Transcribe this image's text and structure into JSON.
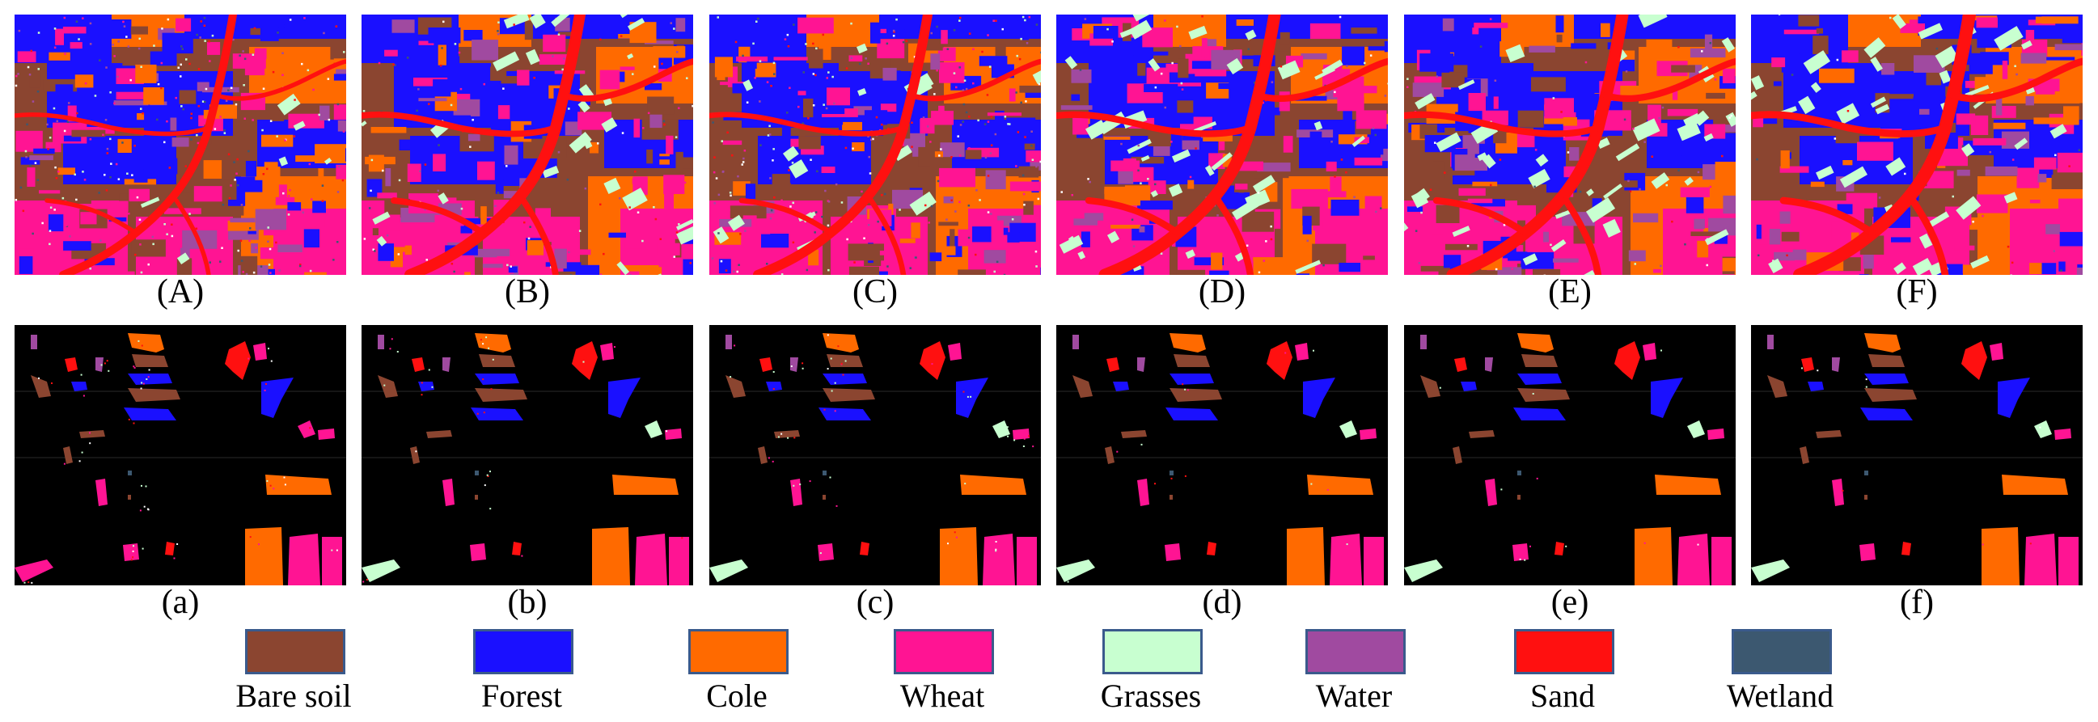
{
  "panels_top": [
    {
      "label": "(A)"
    },
    {
      "label": "(B)"
    },
    {
      "label": "(C)"
    },
    {
      "label": "(D)"
    },
    {
      "label": "(E)"
    },
    {
      "label": "(F)"
    }
  ],
  "panels_bottom": [
    {
      "label": "(a)"
    },
    {
      "label": "(b)"
    },
    {
      "label": "(c)"
    },
    {
      "label": "(d)"
    },
    {
      "label": "(e)"
    },
    {
      "label": "(f)"
    }
  ],
  "legend": [
    {
      "label": "Bare soil",
      "color": "#8b4530"
    },
    {
      "label": "Forest",
      "color": "#1a10ff"
    },
    {
      "label": "Cole",
      "color": "#ff6a00"
    },
    {
      "label": "Wheat",
      "color": "#ff1493"
    },
    {
      "label": "Grasses",
      "color": "#c8ffd0"
    },
    {
      "label": "Water",
      "color": "#a04aa0"
    },
    {
      "label": "Sand",
      "color": "#ff1010"
    },
    {
      "label": "Wetland",
      "color": "#3c5870"
    }
  ]
}
